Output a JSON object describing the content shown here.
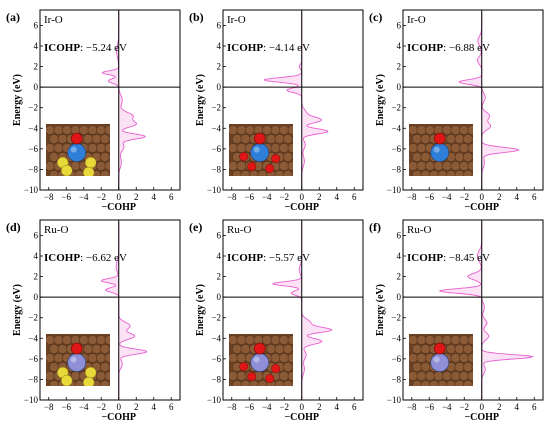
{
  "colors": {
    "curve": "#e85fcf",
    "fill": "#fbe3f5",
    "axis": "#000000",
    "substrate": "#8b5a36",
    "metal_ir": "#2f7fd8",
    "metal_ru": "#8f8fd8",
    "oxygen": "#e01515",
    "sulfur": "#e8d83a"
  },
  "chart_data": [
    {
      "type": "area",
      "panel_label": "(a)",
      "bond_label": "Ir-O",
      "icohp_label": "ICOHP",
      "icohp_value": ": −5.24 eV",
      "xlabel": "−COHP",
      "ylabel": "Energy (eV)",
      "xlim": [
        -9,
        7
      ],
      "ylim": [
        -10,
        7.5
      ],
      "xticks": [
        "−8",
        "−6",
        "−4",
        "−2",
        "0",
        "2",
        "4",
        "6"
      ],
      "yticks": [
        "−10",
        "−8",
        "−6",
        "−4",
        "−2",
        "0",
        "2",
        "4",
        "6"
      ],
      "grid": false,
      "inset": "ir_s",
      "peaks": [
        {
          "e": 1.4,
          "h": -1.9,
          "w": 0.18
        },
        {
          "e": 0.6,
          "h": -1.2,
          "w": 0.22
        },
        {
          "e": 3.5,
          "h": -0.25,
          "w": 0.6
        },
        {
          "e": -1.3,
          "h": 0.4,
          "w": 0.5
        },
        {
          "e": -2.8,
          "h": 1.6,
          "w": 0.35
        },
        {
          "e": -3.6,
          "h": 1.9,
          "w": 0.3
        },
        {
          "e": -4.8,
          "h": 3.0,
          "w": 0.25
        },
        {
          "e": -5.8,
          "h": 0.6,
          "w": 0.4
        },
        {
          "e": -7.3,
          "h": 0.3,
          "w": 0.5
        }
      ]
    },
    {
      "type": "area",
      "panel_label": "(b)",
      "bond_label": "Ir-O",
      "icohp_label": "ICOHP",
      "icohp_value": ": −4.14 eV",
      "xlabel": "−COHP",
      "ylabel": "Energy (eV)",
      "xlim": [
        -9,
        7
      ],
      "ylim": [
        -10,
        7.5
      ],
      "xticks": [
        "−8",
        "−6",
        "−4",
        "−2",
        "0",
        "2",
        "4",
        "6"
      ],
      "yticks": [
        "−10",
        "−8",
        "−6",
        "−4",
        "−2",
        "0",
        "2",
        "4",
        "6"
      ],
      "grid": false,
      "inset": "ir_o",
      "peaks": [
        {
          "e": 2.0,
          "h": -0.3,
          "w": 0.2
        },
        {
          "e": 0.7,
          "h": -4.3,
          "w": 0.22
        },
        {
          "e": -0.3,
          "h": -1.7,
          "w": 0.22
        },
        {
          "e": -2.5,
          "h": 0.5,
          "w": 0.35
        },
        {
          "e": -3.2,
          "h": 2.2,
          "w": 0.28
        },
        {
          "e": -4.3,
          "h": 3.0,
          "w": 0.25
        },
        {
          "e": -5.6,
          "h": 0.4,
          "w": 0.4
        },
        {
          "e": -7.2,
          "h": 0.3,
          "w": 0.5
        }
      ]
    },
    {
      "type": "area",
      "panel_label": "(c)",
      "bond_label": "Ir-O",
      "icohp_label": "ICOHP",
      "icohp_value": ": −6.88 eV",
      "xlabel": "−COHP",
      "ylabel": "Energy (eV)",
      "xlim": [
        -9,
        7
      ],
      "ylim": [
        -10,
        7.5
      ],
      "xticks": [
        "−8",
        "−6",
        "−4",
        "−2",
        "0",
        "2",
        "4",
        "6"
      ],
      "yticks": [
        "−10",
        "−8",
        "−6",
        "−4",
        "−2",
        "0",
        "2",
        "4",
        "6"
      ],
      "grid": false,
      "inset": "ir",
      "peaks": [
        {
          "e": 4.5,
          "h": -0.45,
          "w": 0.45
        },
        {
          "e": 2.6,
          "h": -0.5,
          "w": 0.35
        },
        {
          "e": 0.5,
          "h": -2.6,
          "w": 0.22
        },
        {
          "e": -1.0,
          "h": 0.4,
          "w": 0.4
        },
        {
          "e": -2.8,
          "h": 0.9,
          "w": 0.35
        },
        {
          "e": -3.8,
          "h": 1.0,
          "w": 0.35
        },
        {
          "e": -6.1,
          "h": 4.2,
          "w": 0.25
        },
        {
          "e": -7.3,
          "h": 0.3,
          "w": 0.5
        }
      ]
    },
    {
      "type": "area",
      "panel_label": "(d)",
      "bond_label": "Ru-O",
      "icohp_label": "ICOHP",
      "icohp_value": ": −6.62 eV",
      "xlabel": "−COHP",
      "ylabel": "Energy (eV)",
      "xlim": [
        -9,
        7
      ],
      "ylim": [
        -10,
        7.5
      ],
      "xticks": [
        "−8",
        "−6",
        "−4",
        "−2",
        "0",
        "2",
        "4",
        "6"
      ],
      "yticks": [
        "−10",
        "−8",
        "−6",
        "−4",
        "−2",
        "0",
        "2",
        "4",
        "6"
      ],
      "grid": false,
      "inset": "ru_s",
      "peaks": [
        {
          "e": 1.6,
          "h": -2.0,
          "w": 0.2
        },
        {
          "e": 0.7,
          "h": -1.5,
          "w": 0.22
        },
        {
          "e": 3.0,
          "h": -0.3,
          "w": 0.5
        },
        {
          "e": -2.8,
          "h": 1.3,
          "w": 0.35
        },
        {
          "e": -3.8,
          "h": 1.8,
          "w": 0.3
        },
        {
          "e": -5.3,
          "h": 3.2,
          "w": 0.25
        },
        {
          "e": -6.5,
          "h": 0.4,
          "w": 0.4
        }
      ]
    },
    {
      "type": "area",
      "panel_label": "(e)",
      "bond_label": "Ru-O",
      "icohp_label": "ICOHP",
      "icohp_value": ": −5.57 eV",
      "xlabel": "−COHP",
      "ylabel": "Energy (eV)",
      "xlim": [
        -9,
        7
      ],
      "ylim": [
        -10,
        7.5
      ],
      "xticks": [
        "−8",
        "−6",
        "−4",
        "−2",
        "0",
        "2",
        "4",
        "6"
      ],
      "yticks": [
        "−10",
        "−8",
        "−6",
        "−4",
        "−2",
        "0",
        "2",
        "4",
        "6"
      ],
      "grid": false,
      "inset": "ru_o",
      "peaks": [
        {
          "e": 1.3,
          "h": -3.3,
          "w": 0.2
        },
        {
          "e": 0.4,
          "h": -1.2,
          "w": 0.22
        },
        {
          "e": 2.7,
          "h": -0.3,
          "w": 0.4
        },
        {
          "e": -2.5,
          "h": 1.0,
          "w": 0.35
        },
        {
          "e": -3.2,
          "h": 3.3,
          "w": 0.25
        },
        {
          "e": -4.3,
          "h": 2.3,
          "w": 0.28
        },
        {
          "e": -5.6,
          "h": 0.5,
          "w": 0.4
        },
        {
          "e": -7.0,
          "h": 0.3,
          "w": 0.5
        }
      ]
    },
    {
      "type": "area",
      "panel_label": "(f)",
      "bond_label": "Ru-O",
      "icohp_label": "ICOHP",
      "icohp_value": ": −8.45 eV",
      "xlabel": "−COHP",
      "ylabel": "Energy (eV)",
      "xlim": [
        -9,
        7
      ],
      "ylim": [
        -10,
        7.5
      ],
      "xticks": [
        "−8",
        "−6",
        "−4",
        "−2",
        "0",
        "2",
        "4",
        "6"
      ],
      "yticks": [
        "−10",
        "−8",
        "−6",
        "−4",
        "−2",
        "0",
        "2",
        "4",
        "6"
      ],
      "grid": false,
      "inset": "ru",
      "peaks": [
        {
          "e": 4.0,
          "h": -0.5,
          "w": 0.5
        },
        {
          "e": 2.0,
          "h": -1.6,
          "w": 0.3
        },
        {
          "e": 0.6,
          "h": -4.8,
          "w": 0.22
        },
        {
          "e": -1.0,
          "h": 0.3,
          "w": 0.4
        },
        {
          "e": -2.5,
          "h": 0.6,
          "w": 0.35
        },
        {
          "e": -3.8,
          "h": 0.8,
          "w": 0.35
        },
        {
          "e": -5.8,
          "h": 5.8,
          "w": 0.22
        },
        {
          "e": -7.0,
          "h": 0.4,
          "w": 0.4
        }
      ]
    }
  ]
}
